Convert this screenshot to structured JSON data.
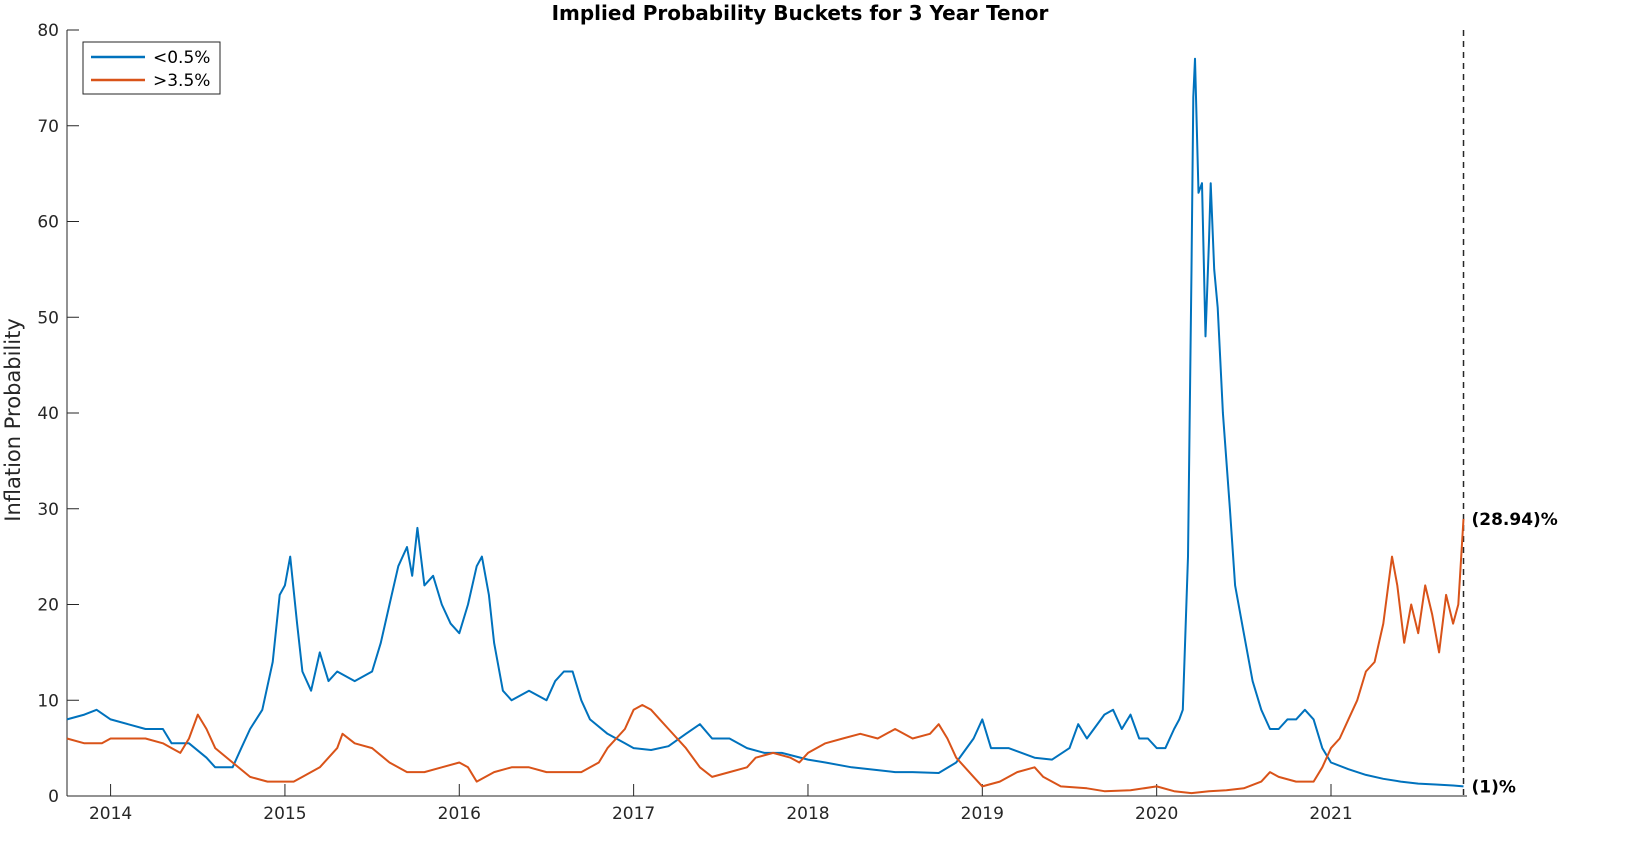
{
  "chart_data": {
    "type": "line",
    "title": "Implied Probability Buckets for 3 Year Tenor",
    "xlabel": "",
    "ylabel": "Inflation Probability",
    "xlim": [
      2013.75,
      2021.78
    ],
    "ylim": [
      0,
      80
    ],
    "x_ticks": [
      "2014",
      "2015",
      "2016",
      "2017",
      "2018",
      "2019",
      "2020",
      "2021"
    ],
    "y_ticks": [
      "0",
      "10",
      "20",
      "30",
      "40",
      "50",
      "60",
      "70",
      "80"
    ],
    "grid": false,
    "legend_position": "top-left",
    "marker_line_x": 2021.76,
    "series": [
      {
        "name": "<0.5%",
        "color": "#0072BD",
        "end_label": "(1)%",
        "points": [
          [
            2013.75,
            8
          ],
          [
            2013.85,
            8.5
          ],
          [
            2013.92,
            9
          ],
          [
            2014.0,
            8
          ],
          [
            2014.1,
            7.5
          ],
          [
            2014.2,
            7
          ],
          [
            2014.3,
            7
          ],
          [
            2014.35,
            5.5
          ],
          [
            2014.45,
            5.5
          ],
          [
            2014.55,
            4
          ],
          [
            2014.6,
            3
          ],
          [
            2014.7,
            3
          ],
          [
            2014.75,
            5
          ],
          [
            2014.8,
            7
          ],
          [
            2014.87,
            9
          ],
          [
            2014.93,
            14
          ],
          [
            2014.97,
            21
          ],
          [
            2015.0,
            22
          ],
          [
            2015.03,
            25
          ],
          [
            2015.07,
            18
          ],
          [
            2015.1,
            13
          ],
          [
            2015.15,
            11
          ],
          [
            2015.2,
            15
          ],
          [
            2015.25,
            12
          ],
          [
            2015.3,
            13
          ],
          [
            2015.4,
            12
          ],
          [
            2015.5,
            13
          ],
          [
            2015.55,
            16
          ],
          [
            2015.6,
            20
          ],
          [
            2015.65,
            24
          ],
          [
            2015.7,
            26
          ],
          [
            2015.73,
            23
          ],
          [
            2015.76,
            28
          ],
          [
            2015.8,
            22
          ],
          [
            2015.85,
            23
          ],
          [
            2015.9,
            20
          ],
          [
            2015.95,
            18
          ],
          [
            2016.0,
            17
          ],
          [
            2016.05,
            20
          ],
          [
            2016.1,
            24
          ],
          [
            2016.13,
            25
          ],
          [
            2016.17,
            21
          ],
          [
            2016.2,
            16
          ],
          [
            2016.25,
            11
          ],
          [
            2016.3,
            10
          ],
          [
            2016.4,
            11
          ],
          [
            2016.5,
            10
          ],
          [
            2016.55,
            12
          ],
          [
            2016.6,
            13
          ],
          [
            2016.65,
            13
          ],
          [
            2016.7,
            10
          ],
          [
            2016.75,
            8
          ],
          [
            2016.85,
            6.5
          ],
          [
            2016.95,
            5.5
          ],
          [
            2017.0,
            5
          ],
          [
            2017.1,
            4.8
          ],
          [
            2017.2,
            5.2
          ],
          [
            2017.3,
            6.5
          ],
          [
            2017.38,
            7.5
          ],
          [
            2017.45,
            6
          ],
          [
            2017.55,
            6
          ],
          [
            2017.65,
            5
          ],
          [
            2017.75,
            4.5
          ],
          [
            2017.85,
            4.5
          ],
          [
            2018.0,
            3.8
          ],
          [
            2018.1,
            3.5
          ],
          [
            2018.25,
            3
          ],
          [
            2018.4,
            2.7
          ],
          [
            2018.5,
            2.5
          ],
          [
            2018.6,
            2.5
          ],
          [
            2018.75,
            2.4
          ],
          [
            2018.85,
            3.5
          ],
          [
            2018.95,
            6
          ],
          [
            2019.0,
            8
          ],
          [
            2019.05,
            5
          ],
          [
            2019.15,
            5
          ],
          [
            2019.3,
            4
          ],
          [
            2019.4,
            3.8
          ],
          [
            2019.5,
            5
          ],
          [
            2019.55,
            7.5
          ],
          [
            2019.6,
            6
          ],
          [
            2019.7,
            8.5
          ],
          [
            2019.75,
            9
          ],
          [
            2019.8,
            7
          ],
          [
            2019.85,
            8.5
          ],
          [
            2019.9,
            6
          ],
          [
            2019.95,
            6
          ],
          [
            2020.0,
            5
          ],
          [
            2020.05,
            5
          ],
          [
            2020.1,
            7
          ],
          [
            2020.13,
            8
          ],
          [
            2020.15,
            9
          ],
          [
            2020.18,
            25
          ],
          [
            2020.2,
            55
          ],
          [
            2020.21,
            73
          ],
          [
            2020.22,
            77
          ],
          [
            2020.24,
            63
          ],
          [
            2020.26,
            64
          ],
          [
            2020.28,
            48
          ],
          [
            2020.3,
            58
          ],
          [
            2020.31,
            64
          ],
          [
            2020.33,
            55
          ],
          [
            2020.35,
            51
          ],
          [
            2020.38,
            40
          ],
          [
            2020.42,
            30
          ],
          [
            2020.45,
            22
          ],
          [
            2020.5,
            17
          ],
          [
            2020.55,
            12
          ],
          [
            2020.6,
            9
          ],
          [
            2020.65,
            7
          ],
          [
            2020.7,
            7
          ],
          [
            2020.75,
            8
          ],
          [
            2020.8,
            8
          ],
          [
            2020.85,
            9
          ],
          [
            2020.9,
            8
          ],
          [
            2020.95,
            5
          ],
          [
            2021.0,
            3.5
          ],
          [
            2021.1,
            2.8
          ],
          [
            2021.2,
            2.2
          ],
          [
            2021.3,
            1.8
          ],
          [
            2021.4,
            1.5
          ],
          [
            2021.5,
            1.3
          ],
          [
            2021.6,
            1.2
          ],
          [
            2021.7,
            1.1
          ],
          [
            2021.76,
            1
          ]
        ]
      },
      {
        "name": ">3.5%",
        "color": "#D95319",
        "end_label": "(28.94)%",
        "points": [
          [
            2013.75,
            6
          ],
          [
            2013.85,
            5.5
          ],
          [
            2013.95,
            5.5
          ],
          [
            2014.0,
            6
          ],
          [
            2014.1,
            6
          ],
          [
            2014.2,
            6
          ],
          [
            2014.3,
            5.5
          ],
          [
            2014.35,
            5
          ],
          [
            2014.4,
            4.5
          ],
          [
            2014.45,
            6
          ],
          [
            2014.5,
            8.5
          ],
          [
            2014.55,
            7
          ],
          [
            2014.6,
            5
          ],
          [
            2014.7,
            3.5
          ],
          [
            2014.8,
            2
          ],
          [
            2014.9,
            1.5
          ],
          [
            2014.97,
            1.5
          ],
          [
            2015.05,
            1.5
          ],
          [
            2015.1,
            2
          ],
          [
            2015.2,
            3
          ],
          [
            2015.3,
            5
          ],
          [
            2015.33,
            6.5
          ],
          [
            2015.4,
            5.5
          ],
          [
            2015.5,
            5
          ],
          [
            2015.6,
            3.5
          ],
          [
            2015.7,
            2.5
          ],
          [
            2015.8,
            2.5
          ],
          [
            2015.9,
            3
          ],
          [
            2016.0,
            3.5
          ],
          [
            2016.05,
            3
          ],
          [
            2016.1,
            1.5
          ],
          [
            2016.2,
            2.5
          ],
          [
            2016.3,
            3
          ],
          [
            2016.4,
            3
          ],
          [
            2016.5,
            2.5
          ],
          [
            2016.6,
            2.5
          ],
          [
            2016.7,
            2.5
          ],
          [
            2016.8,
            3.5
          ],
          [
            2016.85,
            5
          ],
          [
            2016.95,
            7
          ],
          [
            2017.0,
            9
          ],
          [
            2017.05,
            9.5
          ],
          [
            2017.1,
            9
          ],
          [
            2017.15,
            8
          ],
          [
            2017.2,
            7
          ],
          [
            2017.3,
            5
          ],
          [
            2017.38,
            3
          ],
          [
            2017.45,
            2
          ],
          [
            2017.55,
            2.5
          ],
          [
            2017.65,
            3
          ],
          [
            2017.7,
            4
          ],
          [
            2017.8,
            4.5
          ],
          [
            2017.9,
            4
          ],
          [
            2017.95,
            3.5
          ],
          [
            2018.0,
            4.5
          ],
          [
            2018.1,
            5.5
          ],
          [
            2018.2,
            6
          ],
          [
            2018.3,
            6.5
          ],
          [
            2018.4,
            6
          ],
          [
            2018.5,
            7
          ],
          [
            2018.6,
            6
          ],
          [
            2018.7,
            6.5
          ],
          [
            2018.75,
            7.5
          ],
          [
            2018.8,
            6
          ],
          [
            2018.85,
            4
          ],
          [
            2018.95,
            2
          ],
          [
            2019.0,
            1
          ],
          [
            2019.1,
            1.5
          ],
          [
            2019.2,
            2.5
          ],
          [
            2019.3,
            3
          ],
          [
            2019.35,
            2
          ],
          [
            2019.45,
            1
          ],
          [
            2019.6,
            0.8
          ],
          [
            2019.7,
            0.5
          ],
          [
            2019.85,
            0.6
          ],
          [
            2020.0,
            1
          ],
          [
            2020.1,
            0.5
          ],
          [
            2020.2,
            0.3
          ],
          [
            2020.3,
            0.5
          ],
          [
            2020.4,
            0.6
          ],
          [
            2020.5,
            0.8
          ],
          [
            2020.6,
            1.5
          ],
          [
            2020.65,
            2.5
          ],
          [
            2020.7,
            2
          ],
          [
            2020.8,
            1.5
          ],
          [
            2020.9,
            1.5
          ],
          [
            2020.95,
            3
          ],
          [
            2021.0,
            5
          ],
          [
            2021.05,
            6
          ],
          [
            2021.1,
            8
          ],
          [
            2021.15,
            10
          ],
          [
            2021.2,
            13
          ],
          [
            2021.25,
            14
          ],
          [
            2021.3,
            18
          ],
          [
            2021.35,
            25
          ],
          [
            2021.38,
            22
          ],
          [
            2021.42,
            16
          ],
          [
            2021.46,
            20
          ],
          [
            2021.5,
            17
          ],
          [
            2021.54,
            22
          ],
          [
            2021.58,
            19
          ],
          [
            2021.62,
            15
          ],
          [
            2021.66,
            21
          ],
          [
            2021.7,
            18
          ],
          [
            2021.73,
            20
          ],
          [
            2021.75,
            26
          ],
          [
            2021.76,
            28.94
          ]
        ]
      }
    ]
  }
}
